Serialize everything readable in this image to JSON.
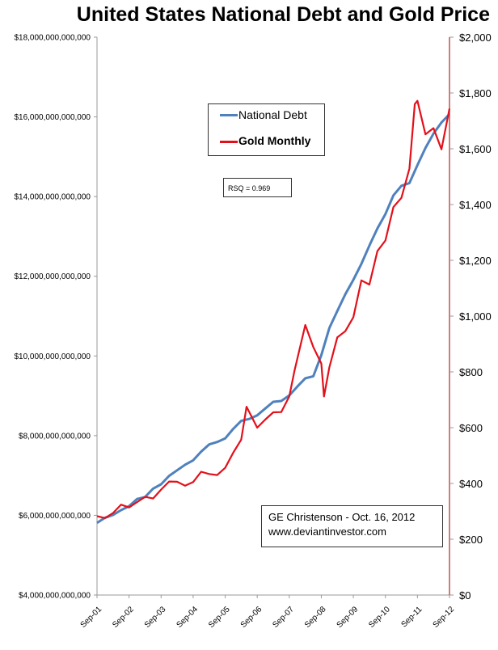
{
  "chart_data": {
    "type": "line",
    "title": "United States National Debt and Gold Price",
    "x_ticks": [
      "Sep-01",
      "Sep-02",
      "Sep-03",
      "Sep-04",
      "Sep-05",
      "Sep-06",
      "Sep-07",
      "Sep-08",
      "Sep-09",
      "Sep-10",
      "Sep-11",
      "Sep-12"
    ],
    "y_left": {
      "range": [
        4000000000000,
        18000000000000
      ],
      "ticks": [
        "$4,000,000,000,000",
        "$6,000,000,000,000",
        "$8,000,000,000,000",
        "$10,000,000,000,000",
        "$12,000,000,000,000",
        "$14,000,000,000,000",
        "$16,000,000,000,000",
        "$18,000,000,000,000"
      ]
    },
    "y_right": {
      "range": [
        0,
        2000
      ],
      "ticks": [
        "$0",
        "$200",
        "$400",
        "$600",
        "$800",
        "$1,000",
        "$1,200",
        "$1,400",
        "$1,600",
        "$1,800",
        "$2,000"
      ],
      "color": "#c0504d"
    },
    "grid": false,
    "legend": "top-center",
    "series": [
      {
        "name": "National Debt",
        "axis": "left",
        "unit": "trillion USD",
        "color": "#4f81bd",
        "points": [
          [
            "2001-09",
            5.81
          ],
          [
            "2001-12",
            5.94
          ],
          [
            "2002-03",
            6.01
          ],
          [
            "2002-06",
            6.13
          ],
          [
            "2002-09",
            6.23
          ],
          [
            "2002-12",
            6.41
          ],
          [
            "2003-03",
            6.46
          ],
          [
            "2003-06",
            6.67
          ],
          [
            "2003-09",
            6.78
          ],
          [
            "2003-12",
            6.99
          ],
          [
            "2004-03",
            7.13
          ],
          [
            "2004-06",
            7.27
          ],
          [
            "2004-09",
            7.38
          ],
          [
            "2004-12",
            7.6
          ],
          [
            "2005-03",
            7.78
          ],
          [
            "2005-06",
            7.84
          ],
          [
            "2005-09",
            7.93
          ],
          [
            "2005-12",
            8.17
          ],
          [
            "2006-03",
            8.37
          ],
          [
            "2006-06",
            8.42
          ],
          [
            "2006-09",
            8.51
          ],
          [
            "2006-12",
            8.68
          ],
          [
            "2007-03",
            8.85
          ],
          [
            "2007-06",
            8.87
          ],
          [
            "2007-09",
            9.01
          ],
          [
            "2007-12",
            9.23
          ],
          [
            "2008-03",
            9.44
          ],
          [
            "2008-06",
            9.49
          ],
          [
            "2008-09",
            10.02
          ],
          [
            "2008-12",
            10.7
          ],
          [
            "2009-03",
            11.13
          ],
          [
            "2009-06",
            11.55
          ],
          [
            "2009-09",
            11.91
          ],
          [
            "2009-12",
            12.31
          ],
          [
            "2010-03",
            12.77
          ],
          [
            "2010-06",
            13.2
          ],
          [
            "2010-09",
            13.56
          ],
          [
            "2010-12",
            14.03
          ],
          [
            "2011-03",
            14.27
          ],
          [
            "2011-06",
            14.34
          ],
          [
            "2011-09",
            14.79
          ],
          [
            "2011-12",
            15.22
          ],
          [
            "2012-03",
            15.58
          ],
          [
            "2012-06",
            15.86
          ],
          [
            "2012-09",
            16.07
          ]
        ]
      },
      {
        "name": "Gold Monthly",
        "axis": "right",
        "unit": "USD",
        "color": "#e3101a",
        "points": [
          [
            "2001-09",
            283
          ],
          [
            "2001-12",
            276
          ],
          [
            "2002-03",
            294
          ],
          [
            "2002-06",
            324
          ],
          [
            "2002-09",
            314
          ],
          [
            "2002-12",
            333
          ],
          [
            "2003-03",
            352
          ],
          [
            "2003-06",
            346
          ],
          [
            "2003-09",
            378
          ],
          [
            "2003-12",
            407
          ],
          [
            "2004-03",
            406
          ],
          [
            "2004-06",
            392
          ],
          [
            "2004-09",
            405
          ],
          [
            "2004-12",
            442
          ],
          [
            "2005-03",
            434
          ],
          [
            "2005-06",
            430
          ],
          [
            "2005-09",
            456
          ],
          [
            "2005-12",
            510
          ],
          [
            "2006-03",
            557
          ],
          [
            "2006-05",
            675
          ],
          [
            "2006-09",
            600
          ],
          [
            "2006-12",
            629
          ],
          [
            "2007-03",
            655
          ],
          [
            "2007-06",
            656
          ],
          [
            "2007-09",
            712
          ],
          [
            "2007-11",
            806
          ],
          [
            "2008-03",
            968
          ],
          [
            "2008-06",
            889
          ],
          [
            "2008-09",
            830
          ],
          [
            "2008-10",
            712
          ],
          [
            "2008-12",
            816
          ],
          [
            "2009-03",
            924
          ],
          [
            "2009-06",
            946
          ],
          [
            "2009-09",
            996
          ],
          [
            "2009-12",
            1128
          ],
          [
            "2010-03",
            1113
          ],
          [
            "2010-06",
            1233
          ],
          [
            "2010-09",
            1271
          ],
          [
            "2010-12",
            1391
          ],
          [
            "2011-03",
            1424
          ],
          [
            "2011-06",
            1529
          ],
          [
            "2011-08",
            1760
          ],
          [
            "2011-09",
            1772
          ],
          [
            "2011-12",
            1652
          ],
          [
            "2012-03",
            1674
          ],
          [
            "2012-06",
            1598
          ],
          [
            "2012-09",
            1744
          ]
        ]
      }
    ],
    "annotations": {
      "rsq": "RSQ = 0.969",
      "credit_line1": "GE Christenson  - Oct. 16, 2012",
      "credit_line2": "www.deviantinvestor.com"
    }
  }
}
